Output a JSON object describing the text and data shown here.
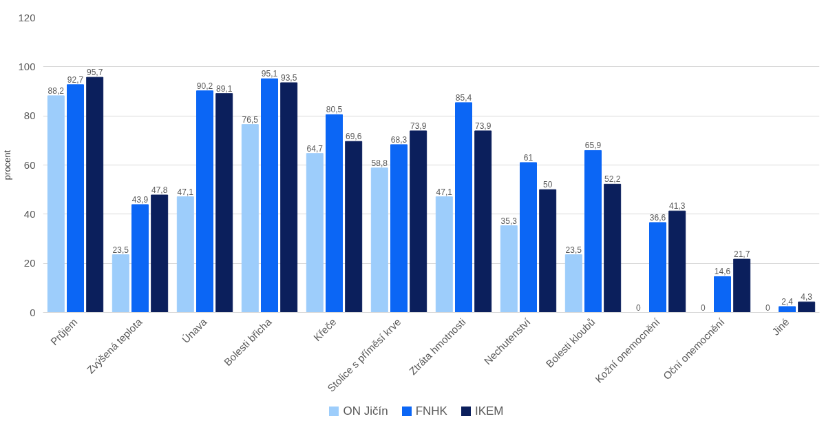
{
  "chart_data": {
    "type": "bar",
    "ylabel": "procent",
    "categories": [
      "Průjem",
      "Zvýšená teplota",
      "Únava",
      "Bolesti břicha",
      "Křeče",
      "Stolice s příměsí krve",
      "Ztráta hmotnosti",
      "Nechutenství",
      "Bolesti kloubů",
      "Kožní onemocnění",
      "Oční onemocnění",
      "Jiné"
    ],
    "series": [
      {
        "name": "ON Jičín",
        "color": "#9dcdfb",
        "values": [
          88.2,
          23.5,
          47.1,
          76.5,
          64.7,
          58.8,
          47.1,
          35.3,
          23.5,
          0,
          0,
          0
        ],
        "value_labels": [
          "88,2",
          "23,5",
          "47,1",
          "76,5",
          "64,7",
          "58,8",
          "47,1",
          "35,3",
          "23,5",
          "0",
          "0",
          "0"
        ]
      },
      {
        "name": "FNHK",
        "color": "#0b66f5",
        "values": [
          92.7,
          43.9,
          90.2,
          95.1,
          80.5,
          68.3,
          85.4,
          61,
          65.9,
          36.6,
          14.6,
          2.4
        ],
        "value_labels": [
          "92,7",
          "43,9",
          "90,2",
          "95,1",
          "80,5",
          "68,3",
          "85,4",
          "61",
          "65,9",
          "36,6",
          "14,6",
          "2,4"
        ]
      },
      {
        "name": "IKEM",
        "color": "#0b1f5c",
        "values": [
          95.7,
          47.8,
          89.1,
          93.5,
          69.6,
          73.9,
          73.9,
          50,
          52.2,
          41.3,
          21.7,
          4.3
        ],
        "value_labels": [
          "95,7",
          "47,8",
          "89,1",
          "93,5",
          "69,6",
          "73,9",
          "73,9",
          "50",
          "52,2",
          "41,3",
          "21,7",
          "4,3"
        ]
      }
    ],
    "ylim": [
      0,
      120
    ],
    "yticks": [
      0,
      20,
      40,
      60,
      80,
      100,
      120
    ],
    "grid": "y",
    "legend": "bottom"
  }
}
